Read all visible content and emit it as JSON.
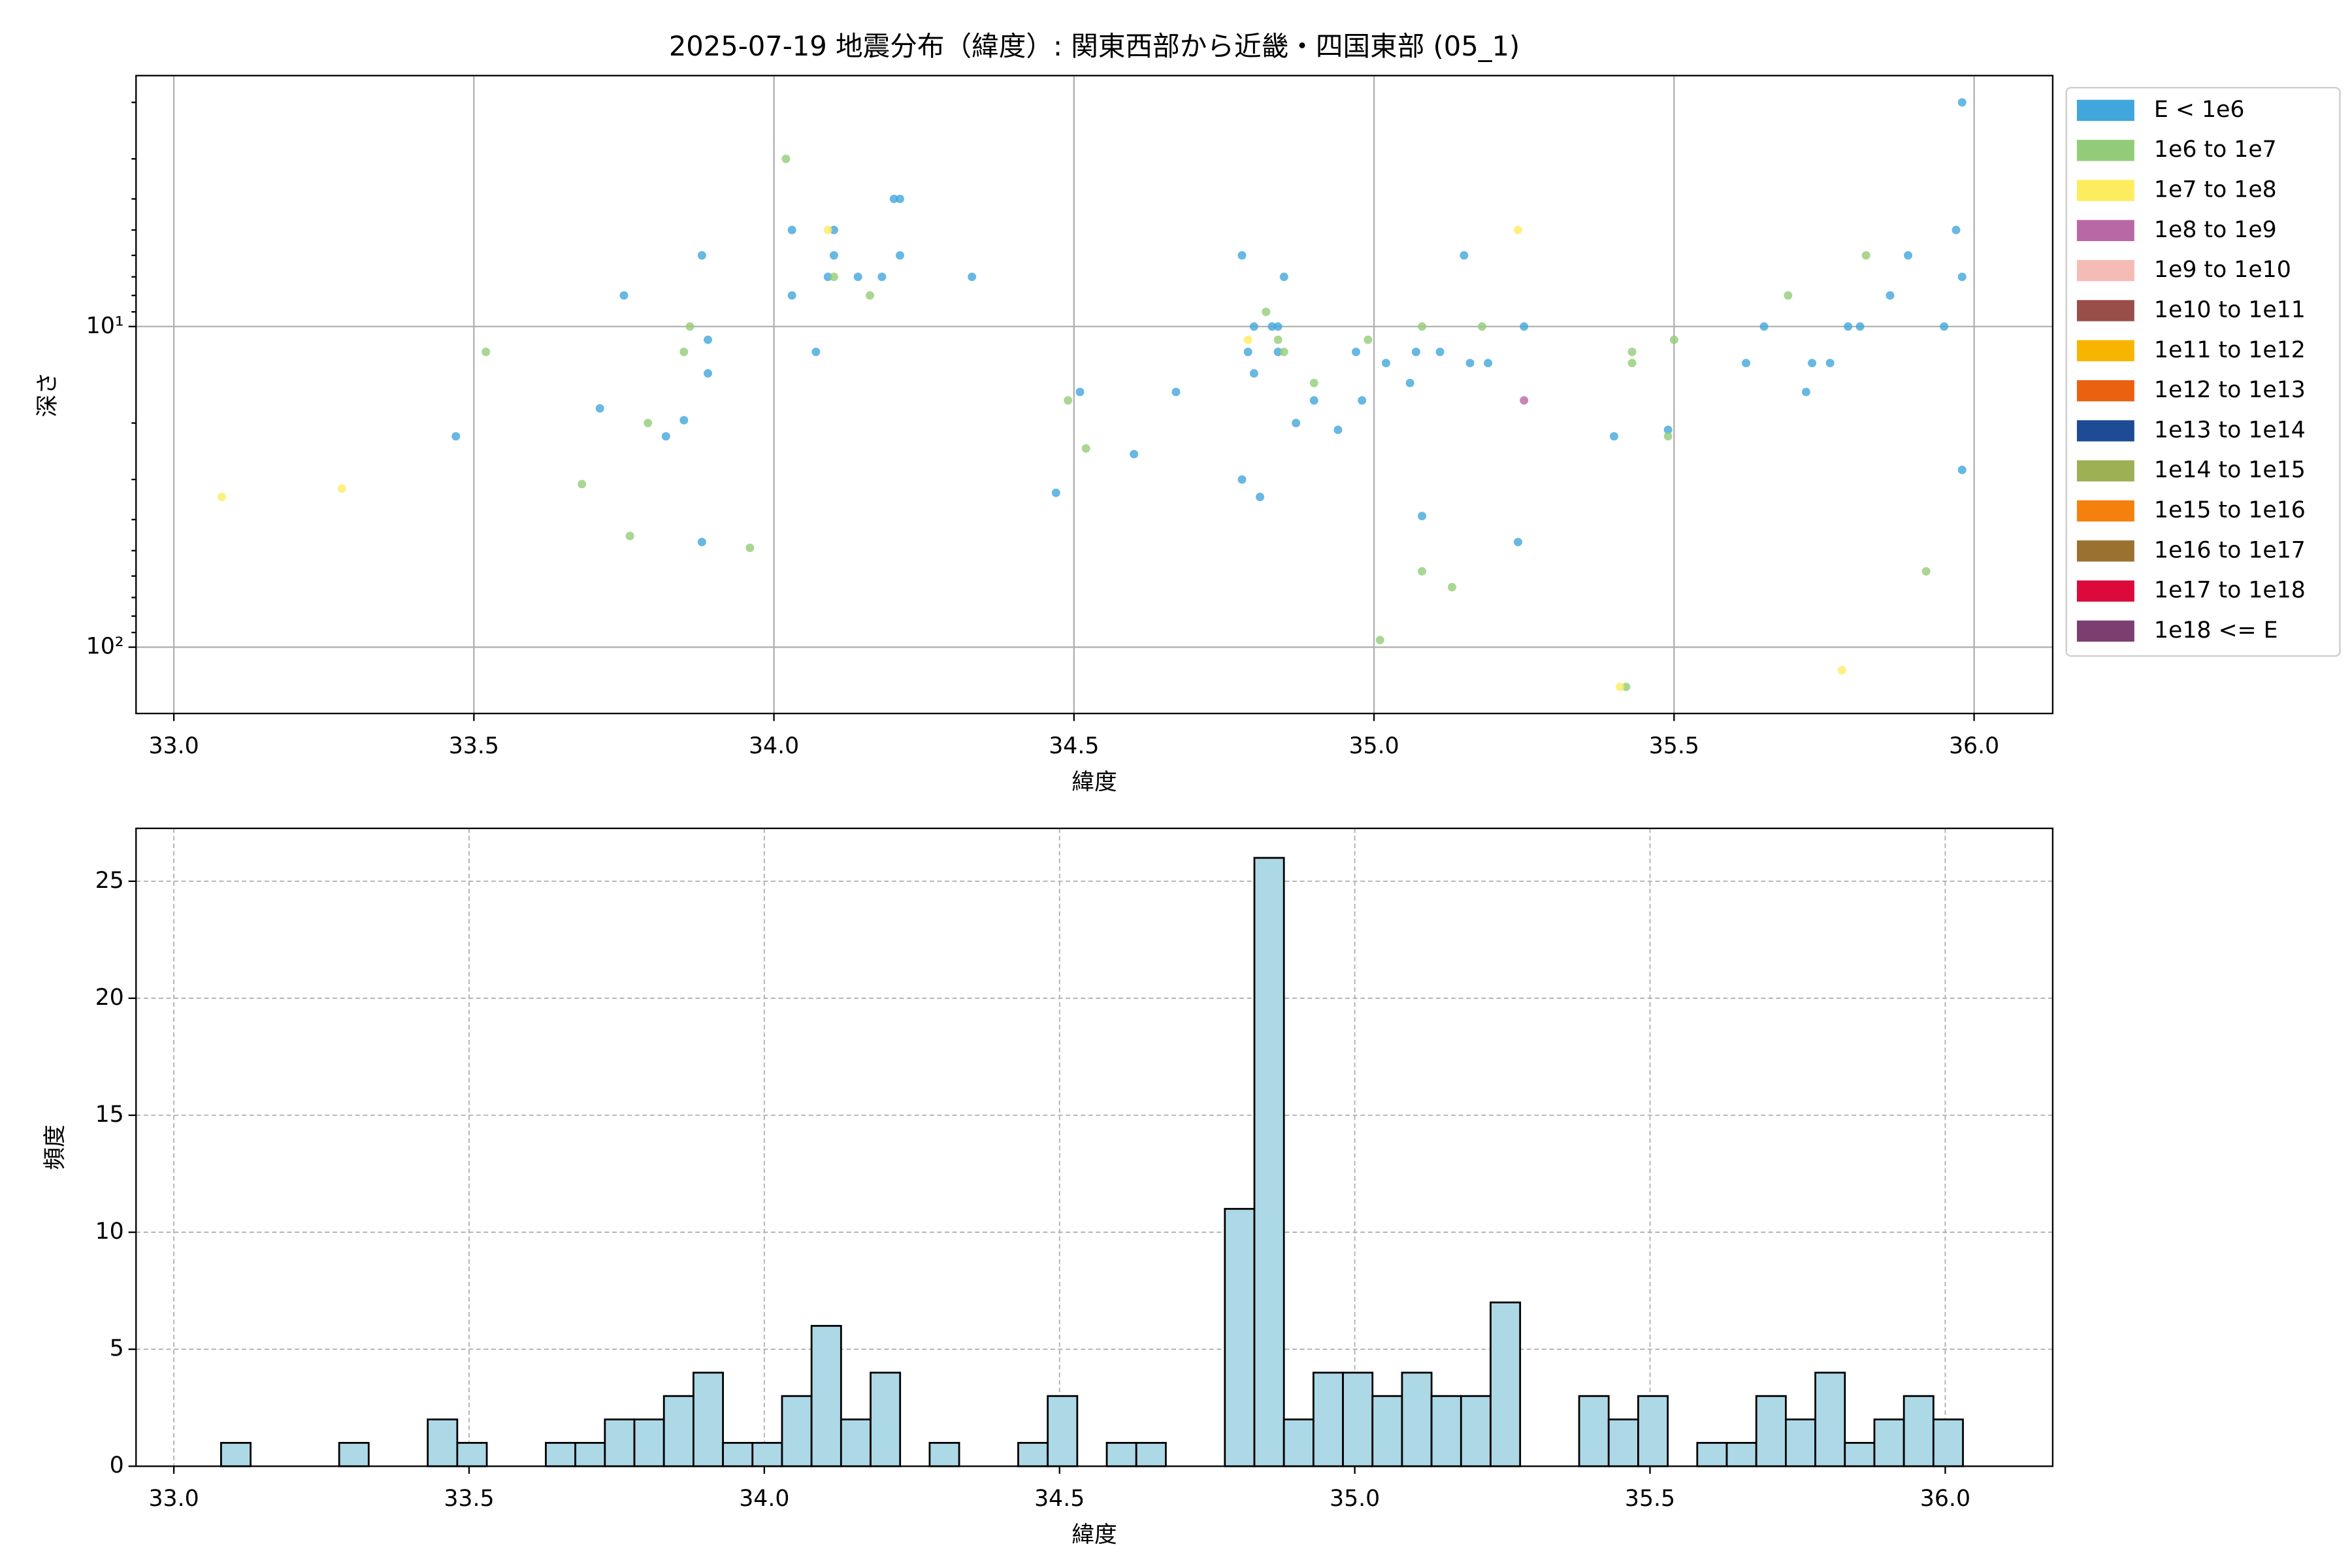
{
  "chart_data": [
    {
      "type": "scatter",
      "title": "2025-07-19 地震分布（緯度）: 関東西部から近畿・四国東部 (05_1)",
      "xlabel": "緯度",
      "ylabel": "深さ",
      "xlim": [
        32.937,
        36.131
      ],
      "ylim": [
        1.65,
        161
      ],
      "yscale": "log",
      "y_inverted": true,
      "grid": true,
      "xticks": [
        {
          "value": 33,
          "label": "33.0"
        },
        {
          "value": 33.5,
          "label": "33.5"
        },
        {
          "value": 34,
          "label": "34.0"
        },
        {
          "value": 34.5,
          "label": "34.5"
        },
        {
          "value": 35,
          "label": "35.0"
        },
        {
          "value": 35.5,
          "label": "35.5"
        },
        {
          "value": 36,
          "label": "36.0"
        }
      ],
      "yticks": [
        {
          "value": 10,
          "label": "10¹"
        },
        {
          "value": 100,
          "label": "10²"
        }
      ],
      "yminorticks": [
        2,
        3,
        4,
        5,
        6,
        7,
        8,
        9,
        20,
        30,
        40,
        50,
        60,
        70,
        80,
        90
      ],
      "legend": "outside-upper-right",
      "series": [
        {
          "name": "E < 1e6",
          "color": "#41a6dc",
          "x": [
            33.47,
            33.75,
            33.71,
            33.82,
            33.85,
            33.88,
            33.89,
            33.89,
            33.88,
            34.03,
            34.03,
            34.07,
            34.09,
            34.1,
            34.1,
            34.14,
            34.18,
            34.2,
            34.21,
            34.21,
            34.33,
            34.47,
            34.51,
            34.6,
            34.67,
            34.78,
            34.8,
            34.79,
            34.8,
            34.78,
            34.81,
            34.83,
            34.84,
            34.85,
            34.84,
            34.87,
            34.9,
            34.94,
            34.97,
            34.98,
            35.02,
            35.06,
            35.07,
            35.08,
            35.11,
            35.15,
            35.16,
            35.19,
            35.25,
            35.24,
            35.4,
            35.49,
            35.62,
            35.65,
            35.72,
            35.73,
            35.76,
            35.79,
            35.81,
            35.86,
            35.89,
            35.95,
            35.97,
            35.98,
            35.98,
            35.98
          ],
          "values": [
            22,
            8,
            18,
            22,
            19.6,
            6,
            11,
            14,
            47,
            5,
            8,
            12,
            7,
            5,
            6,
            7,
            7,
            4,
            4,
            6,
            7,
            33,
            16,
            25,
            16,
            6,
            10,
            12,
            14,
            30,
            34,
            10,
            10,
            7,
            12,
            20,
            17,
            21,
            12,
            17,
            13,
            15,
            12,
            39,
            12,
            6,
            13,
            13,
            10,
            47,
            22,
            21,
            13,
            10,
            16,
            13,
            13,
            10,
            10,
            8,
            6,
            10,
            5,
            2,
            7,
            28
          ]
        },
        {
          "name": "1e6 to 1e7",
          "color": "#93cc78",
          "x": [
            33.52,
            33.68,
            33.76,
            33.79,
            33.85,
            33.86,
            33.96,
            34.02,
            34.1,
            34.16,
            34.49,
            34.52,
            34.82,
            34.84,
            34.85,
            34.9,
            34.99,
            35.01,
            35.08,
            35.08,
            35.13,
            35.18,
            35.42,
            35.43,
            35.43,
            35.49,
            35.5,
            35.69,
            35.82,
            35.92
          ],
          "values": [
            12,
            31,
            45,
            20,
            12,
            10,
            49,
            3,
            7,
            8,
            17,
            24,
            9,
            11,
            12,
            15,
            11,
            95,
            10,
            58,
            65,
            10,
            133,
            12,
            13,
            22,
            11,
            8,
            6,
            58
          ]
        },
        {
          "name": "1e7 to 1e8",
          "color": "#fdec5e",
          "x": [
            33.08,
            33.28,
            34.09,
            34.79,
            35.24,
            35.41,
            35.78
          ],
          "values": [
            34,
            32,
            5,
            11,
            5,
            133,
            118
          ]
        },
        {
          "name": "1e8 to 1e9",
          "color": "#b968a6",
          "x": [
            35.25
          ],
          "values": [
            17
          ]
        },
        {
          "name": "1e9 to 1e10",
          "color": "#f5bcb5",
          "x": [],
          "values": []
        },
        {
          "name": "1e10 to 1e11",
          "color": "#994e4a",
          "x": [],
          "values": []
        },
        {
          "name": "1e11 to 1e12",
          "color": "#f8b500",
          "x": [],
          "values": []
        },
        {
          "name": "1e12 to 1e13",
          "color": "#ea6110",
          "x": [],
          "values": []
        },
        {
          "name": "1e13 to 1e14",
          "color": "#1d4b94",
          "x": [],
          "values": []
        },
        {
          "name": "1e14 to 1e15",
          "color": "#9eb054",
          "x": [],
          "values": []
        },
        {
          "name": "1e15 to 1e16",
          "color": "#f5800e",
          "x": [],
          "values": []
        },
        {
          "name": "1e16 to 1e17",
          "color": "#9a712e",
          "x": [],
          "values": []
        },
        {
          "name": "1e17 to 1e18",
          "color": "#dc0a3b",
          "x": [],
          "values": []
        },
        {
          "name": "1e18 <= E",
          "color": "#7b3e6f",
          "x": [],
          "values": []
        }
      ]
    },
    {
      "type": "histogram",
      "xlabel": "緯度",
      "ylabel": "頻度",
      "color": "#add8e6",
      "edgecolor": "#000000",
      "xlim": [
        32.936,
        36.182
      ],
      "ylim": [
        0,
        27.26
      ],
      "grid": true,
      "xticks": [
        {
          "value": 33,
          "label": "33.0"
        },
        {
          "value": 33.5,
          "label": "33.5"
        },
        {
          "value": 34,
          "label": "34.0"
        },
        {
          "value": 34.5,
          "label": "34.5"
        },
        {
          "value": 35,
          "label": "35.0"
        },
        {
          "value": 35.5,
          "label": "35.5"
        },
        {
          "value": 36,
          "label": "36.0"
        }
      ],
      "yticks": [
        0,
        5,
        10,
        15,
        20,
        25
      ],
      "bins": [
        33.08,
        33.13,
        33.18,
        33.23,
        33.28,
        33.33,
        33.38,
        33.43,
        33.48,
        33.53,
        33.58,
        33.63,
        33.68,
        33.73,
        33.78,
        33.83,
        33.88,
        33.93,
        33.98,
        34.03,
        34.08,
        34.13,
        34.18,
        34.23,
        34.28,
        34.33,
        34.38,
        34.43,
        34.48,
        34.53,
        34.58,
        34.63,
        34.68,
        34.73,
        34.78,
        34.83,
        34.88,
        34.93,
        34.98,
        35.03,
        35.08,
        35.13,
        35.18,
        35.23,
        35.28,
        35.33,
        35.38,
        35.43,
        35.48,
        35.53,
        35.58,
        35.63,
        35.68,
        35.73,
        35.78,
        35.83,
        35.88,
        35.93,
        35.98,
        36.03
      ],
      "values": [
        1,
        0,
        0,
        0,
        1,
        0,
        0,
        2,
        1,
        0,
        0,
        1,
        1,
        2,
        2,
        3,
        4,
        1,
        1,
        3,
        6,
        2,
        4,
        0,
        1,
        0,
        0,
        1,
        3,
        0,
        1,
        1,
        0,
        0,
        11,
        26,
        2,
        4,
        4,
        3,
        4,
        3,
        3,
        7,
        0,
        0,
        3,
        2,
        3,
        0,
        1,
        1,
        3,
        2,
        4,
        1,
        2,
        3,
        2
      ]
    }
  ]
}
